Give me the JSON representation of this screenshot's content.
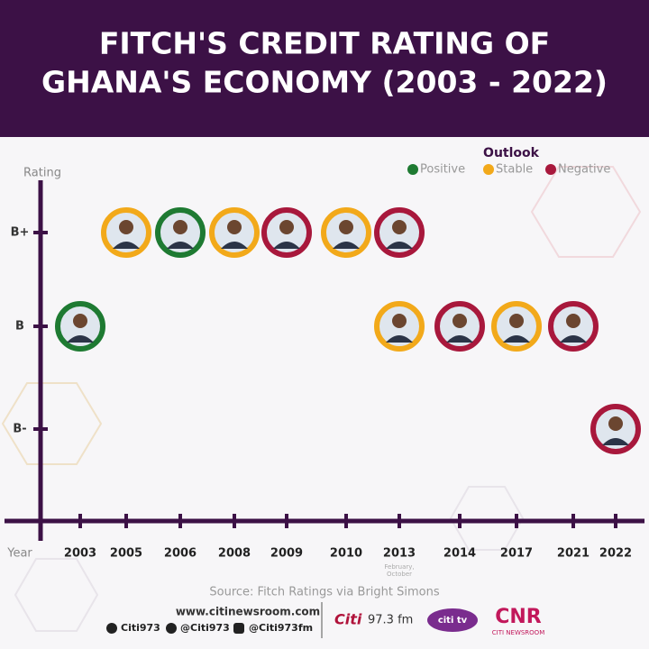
{
  "chart_data": {
    "type": "scatter",
    "title": [
      "FITCH'S CREDIT RATING OF",
      "GHANA'S ECONOMY (2003 - 2022)"
    ],
    "y_label": "Rating",
    "x_label": "Year",
    "categories": [
      "2003",
      "2005",
      "2006",
      "2008",
      "2009",
      "2010",
      "2013",
      "2014",
      "2017",
      "2021",
      "2022"
    ],
    "ratings": [
      "B+",
      "B",
      "B-"
    ],
    "legend_title": "Outlook",
    "outlooks": [
      {
        "name": "Positive",
        "color": "#1e7a32"
      },
      {
        "name": "Stable",
        "color": "#f2a91a"
      },
      {
        "name": "Negative",
        "color": "#a8183c"
      }
    ],
    "points": [
      {
        "year": "2003",
        "rating": "B",
        "outlook": "Positive"
      },
      {
        "year": "2005",
        "rating": "B+",
        "outlook": "Stable"
      },
      {
        "year": "2006",
        "rating": "B+",
        "outlook": "Positive"
      },
      {
        "year": "2008",
        "rating": "B+",
        "outlook": "Stable"
      },
      {
        "year": "2009",
        "rating": "B+",
        "outlook": "Negative"
      },
      {
        "year": "2010",
        "rating": "B+",
        "outlook": "Stable"
      },
      {
        "year": "2013",
        "rating": "B+",
        "outlook": "Negative"
      },
      {
        "year": "2013",
        "rating": "B",
        "outlook": "Stable"
      },
      {
        "year": "2014",
        "rating": "B",
        "outlook": "Negative"
      },
      {
        "year": "2017",
        "rating": "B",
        "outlook": "Stable"
      },
      {
        "year": "2021",
        "rating": "B",
        "outlook": "Negative"
      },
      {
        "year": "2022",
        "rating": "B-",
        "outlook": "Negative"
      }
    ],
    "annotations": [
      "February,",
      "October"
    ]
  },
  "footer": {
    "source": "Source: Fitch Ratings via Bright Simons",
    "website": "www.citinewsroom.com",
    "social": [
      "Citi973",
      "@Citi973",
      "@Citi973fm"
    ],
    "brands": [
      "Citi",
      "97.3 fm",
      "citi tv",
      "CNR",
      "CITI NEWSROOM"
    ]
  }
}
